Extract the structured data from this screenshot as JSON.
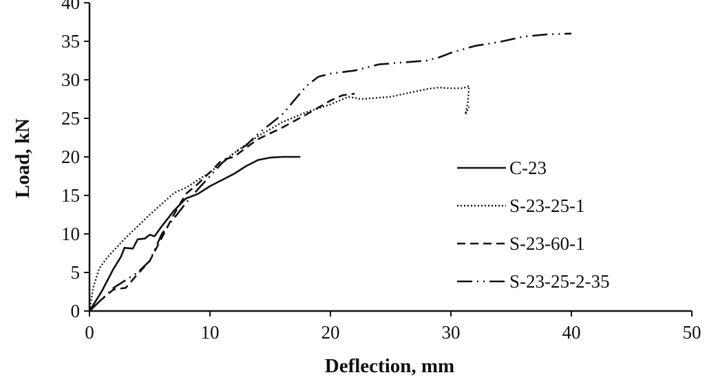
{
  "chart_data": {
    "type": "line",
    "title": "",
    "xlabel": "Deflection, mm",
    "ylabel": "Load, kN",
    "xlim": [
      0,
      50
    ],
    "ylim": [
      0,
      40
    ],
    "xticks": [
      0,
      10,
      20,
      30,
      40,
      50
    ],
    "yticks": [
      0,
      5,
      10,
      15,
      20,
      25,
      30,
      35,
      40
    ],
    "grid": false,
    "legend_position": "right",
    "series": [
      {
        "name": "C-23",
        "style": "solid",
        "color": "#111111",
        "points": [
          [
            0,
            0
          ],
          [
            1,
            2.5
          ],
          [
            2,
            5.5
          ],
          [
            2.6,
            7
          ],
          [
            2.9,
            8.2
          ],
          [
            3.6,
            8.1
          ],
          [
            4,
            9.3
          ],
          [
            4.6,
            9.4
          ],
          [
            5,
            9.9
          ],
          [
            5.4,
            9.7
          ],
          [
            6,
            11
          ],
          [
            7,
            13
          ],
          [
            8,
            14.6
          ],
          [
            9,
            15.2
          ],
          [
            10,
            16.2
          ],
          [
            11,
            17
          ],
          [
            12,
            17.8
          ],
          [
            13,
            18.8
          ],
          [
            14,
            19.6
          ],
          [
            15,
            19.9
          ],
          [
            16,
            20
          ],
          [
            17.5,
            20
          ]
        ]
      },
      {
        "name": "S-23-25-1",
        "style": "dotted",
        "color": "#111111",
        "points": [
          [
            0,
            0
          ],
          [
            0.3,
            3
          ],
          [
            0.8,
            5.5
          ],
          [
            1.5,
            7
          ],
          [
            3,
            9.5
          ],
          [
            5,
            12.5
          ],
          [
            7,
            15.3
          ],
          [
            8,
            16
          ],
          [
            10,
            18
          ],
          [
            12,
            20.5
          ],
          [
            14,
            22.7
          ],
          [
            16,
            24.5
          ],
          [
            18,
            25.8
          ],
          [
            20,
            26.8
          ],
          [
            21.5,
            27.8
          ],
          [
            22.5,
            27.5
          ],
          [
            25,
            27.8
          ],
          [
            28,
            28.8
          ],
          [
            29,
            29
          ],
          [
            30,
            28.9
          ],
          [
            31,
            28.9
          ],
          [
            31.5,
            29.2
          ],
          [
            31.4,
            27
          ],
          [
            31.2,
            25.5
          ],
          [
            31.5,
            26.5
          ]
        ]
      },
      {
        "name": "S-23-60-1",
        "style": "dashed",
        "color": "#111111",
        "points": [
          [
            0,
            0
          ],
          [
            1,
            1.5
          ],
          [
            2,
            2.8
          ],
          [
            3,
            3
          ],
          [
            4,
            4.8
          ],
          [
            5,
            6.5
          ],
          [
            6,
            9.5
          ],
          [
            7,
            12.5
          ],
          [
            8,
            15.2
          ],
          [
            9,
            16.5
          ],
          [
            10,
            18
          ],
          [
            11,
            19.6
          ],
          [
            12,
            20
          ],
          [
            13,
            21.2
          ],
          [
            14,
            22.3
          ],
          [
            16,
            23.8
          ],
          [
            18,
            25.5
          ],
          [
            20,
            27.3
          ],
          [
            21,
            28
          ],
          [
            22,
            28.2
          ]
        ]
      },
      {
        "name": "S-23-25-2-35",
        "style": "dashdotdot",
        "color": "#111111",
        "points": [
          [
            0,
            0
          ],
          [
            1,
            1.5
          ],
          [
            2,
            3
          ],
          [
            3,
            4
          ],
          [
            4,
            5
          ],
          [
            5,
            6.5
          ],
          [
            6,
            10
          ],
          [
            7,
            12
          ],
          [
            8,
            14
          ],
          [
            9,
            15.8
          ],
          [
            10,
            17.5
          ],
          [
            11,
            19.2
          ],
          [
            12,
            20.5
          ],
          [
            13,
            21.5
          ],
          [
            14,
            23
          ],
          [
            16,
            25.5
          ],
          [
            18,
            29.2
          ],
          [
            19,
            30.4
          ],
          [
            20,
            30.8
          ],
          [
            22,
            31.2
          ],
          [
            24,
            32
          ],
          [
            28,
            32.5
          ],
          [
            29,
            32.9
          ],
          [
            30,
            33.5
          ],
          [
            32,
            34.4
          ],
          [
            34,
            34.9
          ],
          [
            36,
            35.6
          ],
          [
            38,
            35.9
          ],
          [
            40,
            36
          ]
        ]
      }
    ]
  }
}
